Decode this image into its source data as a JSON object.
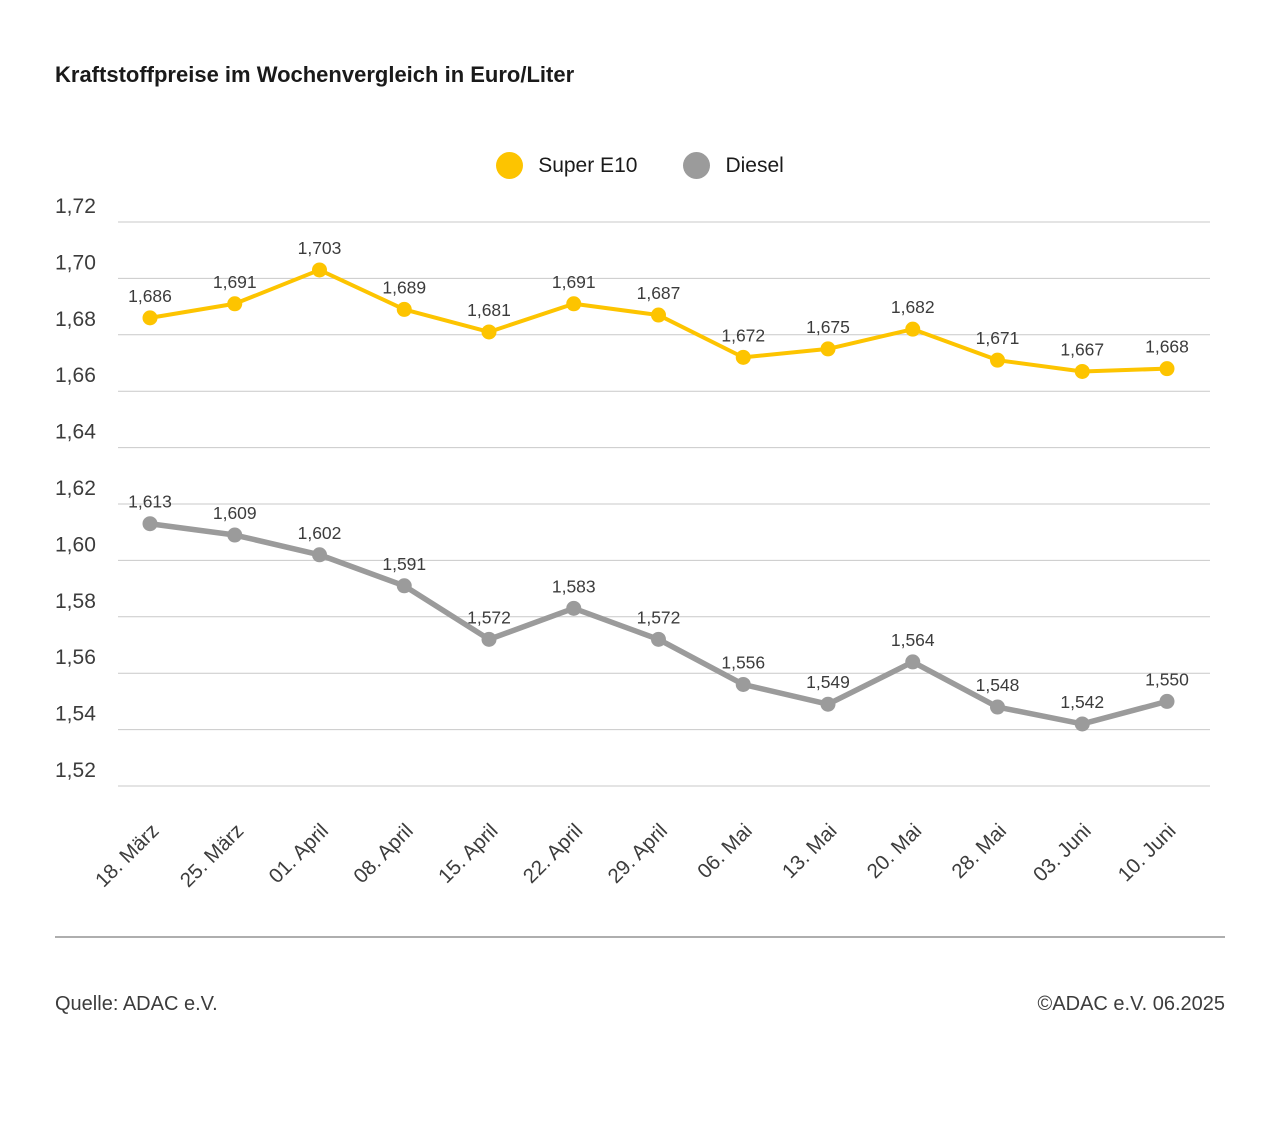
{
  "title": "Kraftstoffpreise im Wochenvergleich in Euro/Liter",
  "legend": {
    "items": [
      {
        "id": "super-e10",
        "label": "Super E10",
        "color": "#FDC400"
      },
      {
        "id": "diesel",
        "label": "Diesel",
        "color": "#9B9B9B"
      }
    ]
  },
  "footer": {
    "source": "Quelle: ADAC e.V.",
    "copyright": "©ADAC e.V. 06.2025"
  },
  "chart_data": {
    "type": "line",
    "title": "Kraftstoffpreise im Wochenvergleich in Euro/Liter",
    "categories": [
      "18. März",
      "25. März",
      "01. April",
      "08. April",
      "15. April",
      "22. April",
      "29. April",
      "06. Mai",
      "13. Mai",
      "20. Mai",
      "28. Mai",
      "03. Juni",
      "10. Juni"
    ],
    "series": [
      {
        "name": "Super E10",
        "color": "#FDC400",
        "values": [
          1.686,
          1.691,
          1.703,
          1.689,
          1.681,
          1.691,
          1.687,
          1.672,
          1.675,
          1.682,
          1.671,
          1.667,
          1.668
        ],
        "value_labels": [
          "1,686",
          "1,691",
          "1,703",
          "1,689",
          "1,681",
          "1,691",
          "1,687",
          "1,672",
          "1,675",
          "1,682",
          "1,671",
          "1,667",
          "1,668"
        ]
      },
      {
        "name": "Diesel",
        "color": "#9B9B9B",
        "values": [
          1.613,
          1.609,
          1.602,
          1.591,
          1.572,
          1.583,
          1.572,
          1.556,
          1.549,
          1.564,
          1.548,
          1.542,
          1.55
        ],
        "value_labels": [
          "1,613",
          "1,609",
          "1,602",
          "1,591",
          "1,572",
          "1,583",
          "1,572",
          "1,556",
          "1,549",
          "1,564",
          "1,548",
          "1,542",
          "1,550"
        ]
      }
    ],
    "ylim": [
      1.52,
      1.72
    ],
    "ytick_step": 0.02,
    "ytick_labels": [
      "1,72",
      "1,70",
      "1,68",
      "1,66",
      "1,64",
      "1,62",
      "1,60",
      "1,58",
      "1,56",
      "1,54",
      "1,52"
    ],
    "grid": true,
    "legend_position": "top-center"
  }
}
